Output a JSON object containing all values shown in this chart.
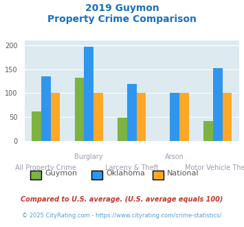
{
  "title_line1": "2019 Guymon",
  "title_line2": "Property Crime Comparison",
  "title_color": "#1a6fbd",
  "categories": [
    "All Property Crime",
    "Burglary",
    "Larceny & Theft",
    "Arson",
    "Motor Vehicle Theft"
  ],
  "top_labels": [
    "",
    "Burglary",
    "",
    "Arson",
    ""
  ],
  "bottom_labels": [
    "All Property Crime",
    "",
    "Larceny & Theft",
    "",
    "Motor Vehicle Theft"
  ],
  "guymon": [
    62,
    133,
    49,
    0,
    41
  ],
  "oklahoma": [
    135,
    197,
    119,
    100,
    153
  ],
  "national": [
    100,
    100,
    100,
    100,
    100
  ],
  "guymon_color": "#7cb342",
  "oklahoma_color": "#2f96f0",
  "national_color": "#ffa726",
  "bg_color": "#ddeaf0",
  "ylim": [
    0,
    210
  ],
  "yticks": [
    0,
    50,
    100,
    150,
    200
  ],
  "footnote1": "Compared to U.S. average. (U.S. average equals 100)",
  "footnote2": "© 2025 CityRating.com - https://www.cityrating.com/crime-statistics/",
  "footnote1_color": "#c0392b",
  "footnote2_color": "#5b9bd5",
  "legend_labels": [
    "Guymon",
    "Oklahoma",
    "National"
  ],
  "legend_label_color": "#555555"
}
